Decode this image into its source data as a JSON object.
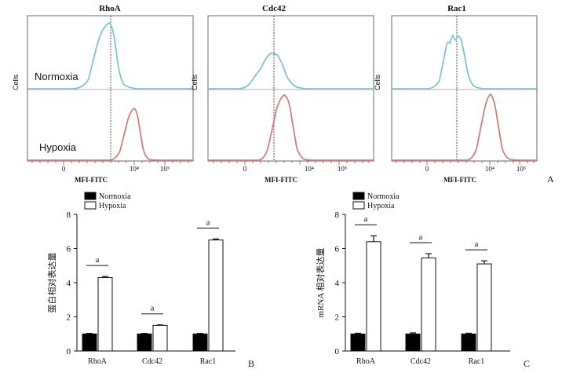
{
  "colors": {
    "normoxia_curve": "#7fc6d4",
    "hypoxia_curve": "#d27f7c",
    "normoxia_label": "#5bb7c9",
    "hypoxia_label": "#cf6f6c",
    "normoxia_bar": "#000000",
    "hypoxia_bar": "#ffffff"
  },
  "panel_a": {
    "letter": "A",
    "ylabel": "Cells",
    "xlabel": "MFI-FITC",
    "normoxia_label": "Normoxia",
    "hypoxia_label": "Hypoxia",
    "xticks": [
      "0",
      "10⁴",
      "10⁵"
    ],
    "histograms": [
      {
        "title": "RhoA"
      },
      {
        "title": "Cdc42"
      },
      {
        "title": "Rac1"
      }
    ]
  },
  "chart_data": [
    {
      "type": "bar",
      "panel": "B",
      "ylabel": "蛋白相对表达量",
      "categories": [
        "RhoA",
        "Cdc42",
        "Rac1"
      ],
      "ylim": [
        0,
        8
      ],
      "yticks": [
        0,
        2,
        4,
        6,
        8
      ],
      "series": [
        {
          "name": "Normoxia",
          "values": [
            1.0,
            1.0,
            1.0
          ],
          "errors": [
            0.03,
            0.03,
            0.03
          ]
        },
        {
          "name": "Hypoxia",
          "values": [
            4.3,
            1.5,
            6.5
          ],
          "errors": [
            0.06,
            0.03,
            0.06
          ]
        }
      ],
      "annotations": [
        "a",
        "a",
        "a"
      ]
    },
    {
      "type": "bar",
      "panel": "C",
      "ylabel": "mRNA 相对表达量",
      "categories": [
        "RhoA",
        "Cdc42",
        "Rac1"
      ],
      "ylim": [
        0,
        8
      ],
      "yticks": [
        0,
        2,
        4,
        6,
        8
      ],
      "series": [
        {
          "name": "Normoxia",
          "values": [
            1.0,
            1.0,
            1.0
          ],
          "errors": [
            0.04,
            0.06,
            0.04
          ]
        },
        {
          "name": "Hypoxia",
          "values": [
            6.4,
            5.45,
            5.1
          ],
          "errors": [
            0.35,
            0.25,
            0.18
          ]
        }
      ],
      "annotations": [
        "a",
        "a",
        "a"
      ]
    }
  ]
}
